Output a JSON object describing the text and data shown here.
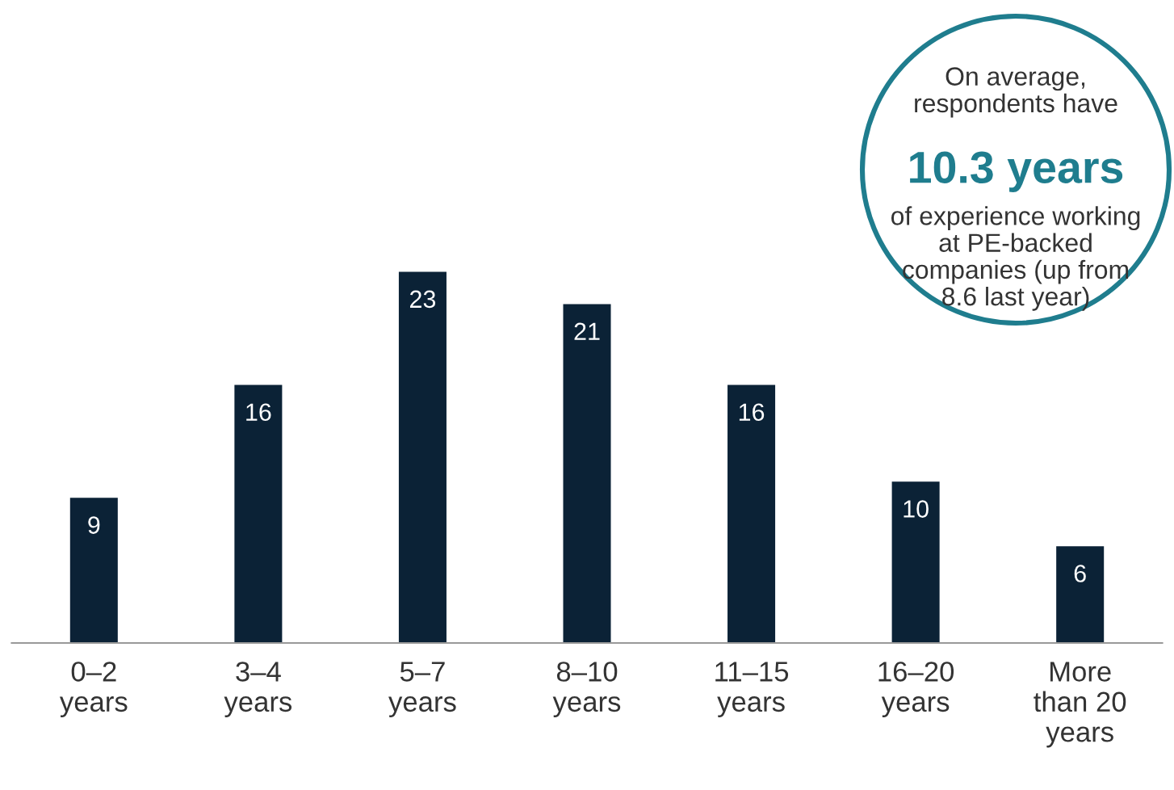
{
  "chart_data": {
    "type": "bar",
    "categories": [
      "0–2\nyears",
      "3–4\nyears",
      "5–7\nyears",
      "8–10\nyears",
      "11–15\nyears",
      "16–20\nyears",
      "More\nthan 20\nyears"
    ],
    "values": [
      9,
      16,
      23,
      21,
      16,
      10,
      6
    ],
    "color": "#0b2236",
    "data_labels": true,
    "grid": false,
    "legend": false,
    "annotations": [
      "On average,\nrespondents have",
      "10.3 years",
      "of experience working\nat PE-backed\ncompanies (up from\n8.6 last year)"
    ]
  }
}
